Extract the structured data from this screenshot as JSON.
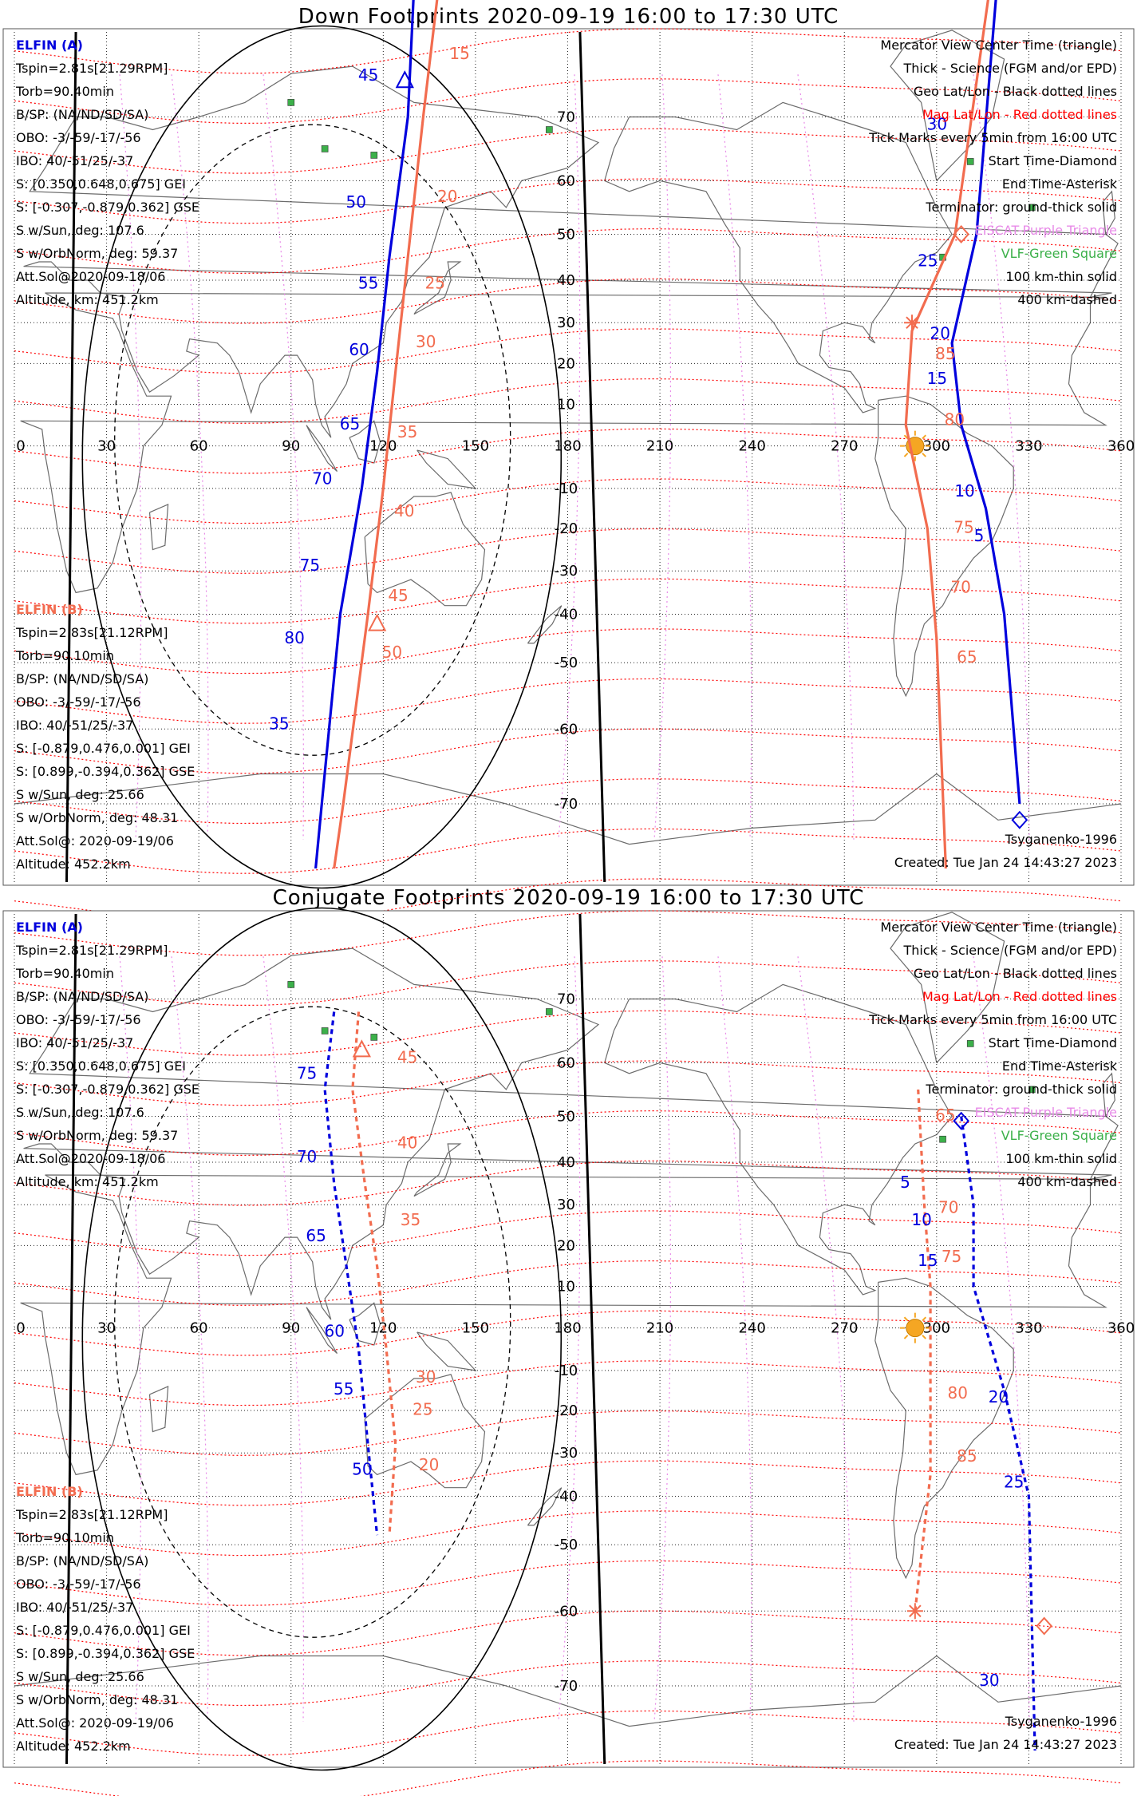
{
  "panels": [
    {
      "title": "Down Footprints 2020-09-19 16:00 to 17:30 UTC",
      "probe_a": {
        "name": "ELFIN (A)",
        "lines": [
          "Tspin=2.81s[21.29RPM]",
          "Torb=90.40min",
          "B/SP: (NA/ND/SD/SA)",
          "OBO: -3/-59/-17/-56",
          "IBO: 40/-51/25/-37",
          "S: [0.350,0.648,0.675] GEI",
          "S: [-0.307,-0.879,0.362] GSE",
          "S w/Sun, deg: 107.6",
          "S w/OrbNorm, deg: 59.37",
          "Att.Sol@2020-09-18/06",
          "Altitude, km: 451.2km"
        ]
      },
      "probe_b": {
        "name": "ELFIN (B)",
        "lines": [
          "Tspin=2.83s[21.12RPM]",
          "Torb=90.10min",
          "B/SP: (NA/ND/SD/SA)",
          "OBO: -3/-59/-17/-56",
          "IBO: 40/-51/25/-37",
          "S: [-0.879,0.476,0.001] GEI",
          "S: [0.899,-0.394,0.362] GSE",
          "S w/Sun, deg: 25.66",
          "S w/OrbNorm, deg: 48.31",
          "Att.Sol@: 2020-09-19/06",
          "Altitude: 452.2km"
        ]
      },
      "legend": [
        {
          "text": "Mercator View Center Time (triangle)",
          "color": "#000000"
        },
        {
          "text": "Thick - Science (FGM and/or EPD)",
          "color": "#000000"
        },
        {
          "text": "Geo Lat/Lon - Black dotted lines",
          "color": "#000000"
        },
        {
          "text": "Mag Lat/Lon - Red dotted lines",
          "color": "#ff0000"
        },
        {
          "text": "Tick Marks every 5min from 16:00 UTC",
          "color": "#000000"
        },
        {
          "text": "Start Time-Diamond",
          "color": "#000000"
        },
        {
          "text": "End Time-Asterisk",
          "color": "#000000"
        },
        {
          "text": "Terminator: ground-thick solid",
          "color": "#000000"
        },
        {
          "text": "EISCAT-Purple Triangle",
          "color": "#e88ae8"
        },
        {
          "text": "VLF-Green Square",
          "color": "#3cb04a"
        },
        {
          "text": "100 km-thin solid",
          "color": "#000000"
        },
        {
          "text": "400 km-dashed",
          "color": "#000000"
        }
      ],
      "model": "Tsyganenko-1996",
      "created": "Created: Tue Jan 24 14:43:27 2023",
      "blue_ticks": [
        "45",
        "50",
        "55",
        "60",
        "65",
        "70",
        "75",
        "80",
        "35",
        "30",
        "25",
        "20",
        "15",
        "10",
        "5"
      ],
      "red_ticks": [
        "15",
        "20",
        "25",
        "30",
        "35",
        "40",
        "45",
        "50",
        "85",
        "80",
        "75",
        "70",
        "65"
      ]
    },
    {
      "title": "Conjugate Footprints 2020-09-19 16:00 to 17:30 UTC",
      "probe_a": {
        "name": "ELFIN (A)",
        "lines": [
          "Tspin=2.81s[21.29RPM]",
          "Torb=90.40min",
          "B/SP: (NA/ND/SD/SA)",
          "OBO: -3/-59/-17/-56",
          "IBO: 40/-51/25/-37",
          "S: [0.350,0.648,0.675] GEI",
          "S: [-0.307,-0.879,0.362] GSE",
          "S w/Sun, deg: 107.6",
          "S w/OrbNorm, deg: 59.37",
          "Att.Sol@2020-09-18/06",
          "Altitude, km: 451.2km"
        ]
      },
      "probe_b": {
        "name": "ELFIN (B)",
        "lines": [
          "Tspin=2.83s[21.12RPM]",
          "Torb=90.10min",
          "B/SP: (NA/ND/SD/SA)",
          "OBO: -3/-59/-17/-56",
          "IBO: 40/-51/25/-37",
          "S: [-0.879,0.476,0.001] GEI",
          "S: [0.899,-0.394,0.362] GSE",
          "S w/Sun, deg: 25.66",
          "S w/OrbNorm, deg: 48.31",
          "Att.Sol@: 2020-09-19/06",
          "Altitude: 452.2km"
        ]
      },
      "legend": [
        {
          "text": "Mercator View Center Time (triangle)",
          "color": "#000000"
        },
        {
          "text": "Thick - Science (FGM and/or EPD)",
          "color": "#000000"
        },
        {
          "text": "Geo Lat/Lon - Black dotted lines",
          "color": "#000000"
        },
        {
          "text": "Mag Lat/Lon - Red dotted lines",
          "color": "#ff0000"
        },
        {
          "text": "Tick Marks every 5min from 16:00 UTC",
          "color": "#000000"
        },
        {
          "text": "Start Time-Diamond",
          "color": "#000000"
        },
        {
          "text": "End Time-Asterisk",
          "color": "#000000"
        },
        {
          "text": "Terminator: ground-thick solid",
          "color": "#000000"
        },
        {
          "text": "EISCAT-Purple Triangle",
          "color": "#e88ae8"
        },
        {
          "text": "VLF-Green Square",
          "color": "#3cb04a"
        },
        {
          "text": "100 km-thin solid",
          "color": "#000000"
        },
        {
          "text": "400 km-dashed",
          "color": "#000000"
        }
      ],
      "model": "Tsyganenko-1996",
      "created": "Created: Tue Jan 24 14:43:27 2023",
      "blue_ticks": [
        "75",
        "70",
        "65",
        "60",
        "55",
        "50",
        "5",
        "10",
        "15",
        "20",
        "25",
        "30"
      ],
      "red_ticks": [
        "45",
        "40",
        "35",
        "30",
        "25",
        "20",
        "65",
        "70",
        "75",
        "80",
        "85"
      ]
    }
  ],
  "map": {
    "lon_labels": [
      "0",
      "30",
      "60",
      "90",
      "120",
      "150",
      "180",
      "210",
      "240",
      "270",
      "300",
      "330",
      "360"
    ],
    "lat_labels": [
      "70",
      "60",
      "50",
      "40",
      "30",
      "20",
      "10",
      "0",
      "-10",
      "-20",
      "-30",
      "-40",
      "-50",
      "-60",
      "-70"
    ],
    "colors": {
      "probe_a": "#0000dd",
      "probe_b": "#f26c4f",
      "mag_grid": "#ff0000",
      "eiscat": "#e88ae8",
      "vlf": "#3cb04a",
      "sun": "#f5a623"
    }
  }
}
